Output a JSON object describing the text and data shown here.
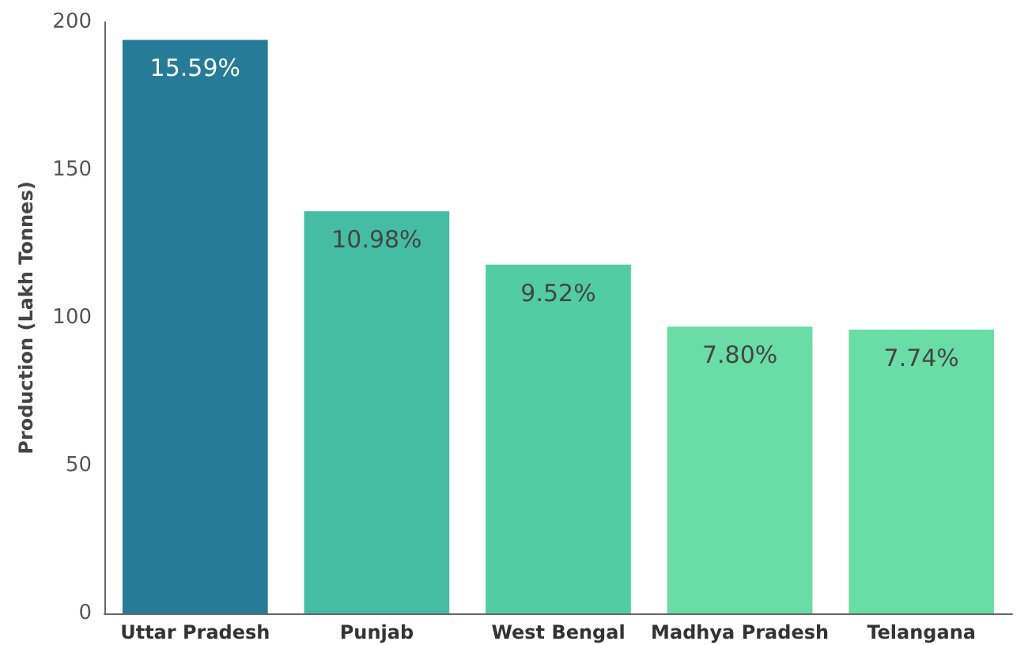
{
  "chart_data": {
    "type": "bar",
    "ylabel": "Production (Lakh Tonnes)",
    "categories": [
      "Uttar Pradesh",
      "Punjab",
      "West Bengal",
      "Madhya Pradesh",
      "Telangana"
    ],
    "values": [
      194,
      136,
      118,
      97,
      96
    ],
    "colors": [
      "#267b96",
      "#45bda2",
      "#52cca2",
      "#6adca6",
      "#6adca6"
    ],
    "annotations": [
      {
        "text": "15.59%",
        "x": "Uttar Pradesh",
        "y": 194
      },
      {
        "text": "10.98%",
        "x": "Punjab",
        "y": 136
      },
      {
        "text": "9.52%",
        "x": "West Bengal",
        "y": 118
      },
      {
        "text": "7.80%",
        "x": "Madhya Pradesh",
        "y": 97
      },
      {
        "text": "7.74%",
        "x": "Telangana",
        "y": 96
      }
    ],
    "ylim": [
      0,
      200
    ],
    "yticks": [
      0,
      50,
      100,
      150,
      200
    ],
    "grid": false
  }
}
